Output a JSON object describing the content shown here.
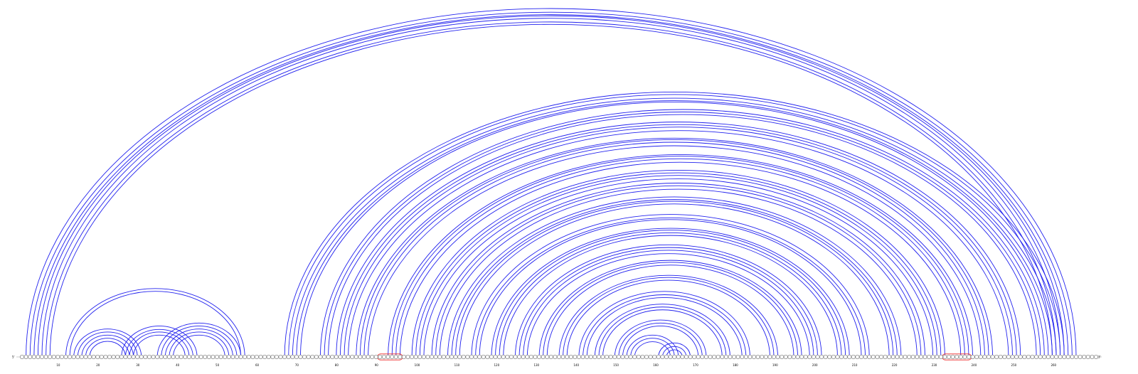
{
  "diagram": {
    "type": "rna-arc-diagram",
    "sequence_length": 271,
    "start_label": "5'",
    "end_label": "3'",
    "position_ticks": [
      10,
      20,
      30,
      40,
      50,
      60,
      70,
      80,
      90,
      100,
      110,
      120,
      130,
      140,
      150,
      160,
      170,
      180,
      190,
      200,
      210,
      220,
      230,
      240,
      250,
      260
    ],
    "arc_color": "#2222ee",
    "highlight_color": "#ee2222",
    "highlighted_regions": [
      [
        91,
        96
      ],
      [
        233,
        239
      ]
    ],
    "stems": [
      {
        "from": 2,
        "to": 266,
        "length": 7
      },
      {
        "from": 12,
        "to": 57,
        "length": 2
      },
      {
        "from": 14,
        "to": 31,
        "length": 5
      },
      {
        "from": 26,
        "to": 45,
        "length": 4
      },
      {
        "from": 35,
        "to": 56,
        "length": 5
      },
      {
        "from": 67,
        "to": 263,
        "length": 5
      },
      {
        "from": 76,
        "to": 258,
        "length": 3
      },
      {
        "from": 80,
        "to": 252,
        "length": 4
      },
      {
        "from": 85,
        "to": 245,
        "length": 4
      },
      {
        "from": 93,
        "to": 240,
        "length": 4
      },
      {
        "from": 99,
        "to": 233,
        "length": 4
      },
      {
        "from": 104,
        "to": 228,
        "length": 3
      },
      {
        "from": 108,
        "to": 222,
        "length": 4
      },
      {
        "from": 114,
        "to": 214,
        "length": 3
      },
      {
        "from": 119,
        "to": 209,
        "length": 4
      },
      {
        "from": 125,
        "to": 202,
        "length": 4
      },
      {
        "from": 131,
        "to": 197,
        "length": 3
      },
      {
        "from": 136,
        "to": 191,
        "length": 3
      },
      {
        "from": 141,
        "to": 184,
        "length": 3
      },
      {
        "from": 145,
        "to": 179,
        "length": 3
      },
      {
        "from": 150,
        "to": 173,
        "length": 3
      },
      {
        "from": 153,
        "to": 166,
        "length": 3
      },
      {
        "from": 161,
        "to": 169,
        "length": 3
      }
    ]
  }
}
